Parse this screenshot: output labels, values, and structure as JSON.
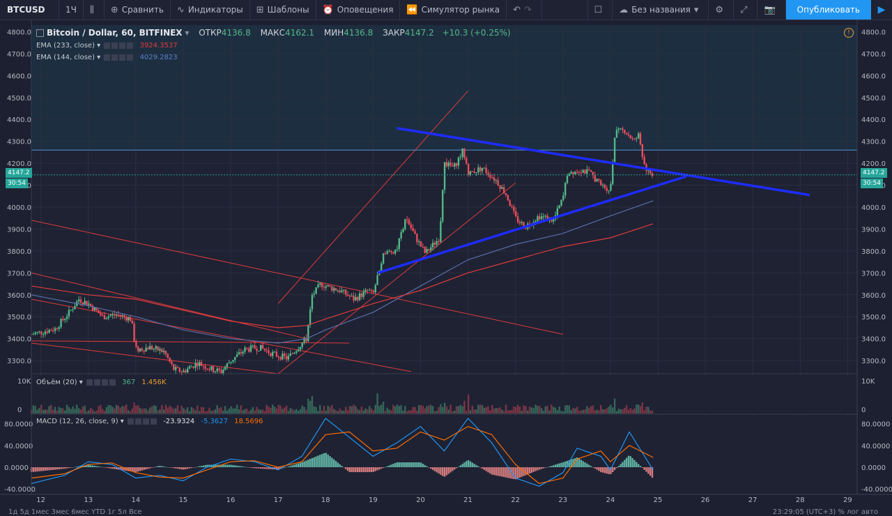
{
  "toolbar": {
    "symbol": "BTCUSD",
    "interval": "1Ч",
    "compare": "Сравнить",
    "indicators": "Индикаторы",
    "templates": "Шаблоны",
    "alerts": "Оповещения",
    "replay": "Симулятор рынка",
    "layout_name": "Без названия",
    "publish": "Опубликовать"
  },
  "legend": {
    "title": "Bitcoin / Dollar, 60, BITFINEX",
    "open_label": "ОТКР",
    "open": "4136.8",
    "high_label": "МАКС",
    "high": "4162.1",
    "low_label": "МИН",
    "low": "4136.8",
    "close_label": "ЗАКР",
    "close": "4147.2",
    "change": "+10.3 (+0.25%)",
    "ema1_label": "EMA (233, close)",
    "ema1_value": "3924.3537",
    "ema2_label": "EMA (144, close)",
    "ema2_value": "4029.2823",
    "volume_label": "Объём (20)",
    "volume_v1": "367",
    "volume_v2": "1.456K",
    "macd_label": "MACD (12, 26, close, 9)",
    "macd_v1": "-23.9324",
    "macd_v2": "-5.3627",
    "macd_v3": "18.5696"
  },
  "badges": {
    "price": "4147.2",
    "timer": "30:54"
  },
  "bottom": {
    "left": "1д  5д  1мес  3мес  6мес  YTD  1г  5л  Все",
    "right": "23:29:05 (UTC+3)    %    лог    авто"
  },
  "chart_data": {
    "type": "line",
    "colors": {
      "up": "#53b987",
      "down": "#eb4d5c",
      "ema233": "#e23b3b",
      "ema144": "#5a6ea8",
      "trend": "#1e2cff",
      "macd": "#2196f3",
      "signal": "#ff6d00",
      "resistance": "#4a7fb0"
    },
    "price_axis": {
      "ticks": [
        3300,
        3400,
        3500,
        3600,
        3700,
        3800,
        3900,
        4000,
        4100,
        4200,
        4300,
        4400,
        4500,
        4600,
        4700,
        4800
      ],
      "range": [
        3240,
        4830
      ]
    },
    "volume_axis": {
      "ticks": [
        "10K",
        "0"
      ]
    },
    "macd_axis": {
      "ticks": [
        80,
        40,
        0,
        -40
      ],
      "range": [
        -50,
        95
      ]
    },
    "x_axis": {
      "ticks": [
        "12",
        "13",
        "14",
        "15",
        "16",
        "17",
        "18",
        "19",
        "20",
        "21",
        "22",
        "23",
        "24",
        "25",
        "26",
        "27",
        "28",
        "29"
      ],
      "range": [
        11.8,
        29.2
      ]
    },
    "price_path": [
      [
        11.8,
        3420
      ],
      [
        12.0,
        3430
      ],
      [
        12.3,
        3445
      ],
      [
        12.6,
        3520
      ],
      [
        12.8,
        3580
      ],
      [
        13.0,
        3560
      ],
      [
        13.3,
        3500
      ],
      [
        13.6,
        3510
      ],
      [
        13.9,
        3490
      ],
      [
        14.0,
        3350
      ],
      [
        14.3,
        3360
      ],
      [
        14.6,
        3340
      ],
      [
        14.8,
        3260
      ],
      [
        15.0,
        3250
      ],
      [
        15.3,
        3290
      ],
      [
        15.6,
        3260
      ],
      [
        15.8,
        3250
      ],
      [
        16.0,
        3300
      ],
      [
        16.3,
        3350
      ],
      [
        16.6,
        3360
      ],
      [
        16.9,
        3330
      ],
      [
        17.2,
        3310
      ],
      [
        17.5,
        3380
      ],
      [
        17.6,
        3400
      ],
      [
        17.7,
        3590
      ],
      [
        17.9,
        3650
      ],
      [
        18.0,
        3640
      ],
      [
        18.3,
        3620
      ],
      [
        18.6,
        3580
      ],
      [
        18.9,
        3620
      ],
      [
        19.0,
        3600
      ],
      [
        19.2,
        3780
      ],
      [
        19.5,
        3810
      ],
      [
        19.7,
        3950
      ],
      [
        19.9,
        3860
      ],
      [
        20.1,
        3790
      ],
      [
        20.4,
        3860
      ],
      [
        20.5,
        4200
      ],
      [
        20.7,
        4180
      ],
      [
        20.9,
        4260
      ],
      [
        21.0,
        4150
      ],
      [
        21.3,
        4180
      ],
      [
        21.6,
        4120
      ],
      [
        21.8,
        4060
      ],
      [
        22.0,
        3950
      ],
      [
        22.2,
        3910
      ],
      [
        22.5,
        3960
      ],
      [
        22.8,
        3940
      ],
      [
        23.0,
        4040
      ],
      [
        23.1,
        4160
      ],
      [
        23.4,
        4170
      ],
      [
        23.6,
        4150
      ],
      [
        23.8,
        4100
      ],
      [
        24.0,
        4080
      ],
      [
        24.1,
        4340
      ],
      [
        24.3,
        4350
      ],
      [
        24.5,
        4300
      ],
      [
        24.6,
        4330
      ],
      [
        24.7,
        4200
      ],
      [
        24.8,
        4160
      ],
      [
        24.9,
        4147
      ]
    ],
    "ema233": [
      [
        11.8,
        3640
      ],
      [
        13.0,
        3600
      ],
      [
        14.0,
        3580
      ],
      [
        15.0,
        3530
      ],
      [
        16.0,
        3480
      ],
      [
        17.0,
        3450
      ],
      [
        17.6,
        3460
      ],
      [
        18.0,
        3490
      ],
      [
        19.0,
        3560
      ],
      [
        20.0,
        3620
      ],
      [
        21.0,
        3700
      ],
      [
        22.0,
        3760
      ],
      [
        23.0,
        3820
      ],
      [
        24.0,
        3860
      ],
      [
        24.9,
        3924
      ]
    ],
    "ema144": [
      [
        11.8,
        3600
      ],
      [
        13.0,
        3550
      ],
      [
        14.0,
        3500
      ],
      [
        15.0,
        3440
      ],
      [
        16.0,
        3400
      ],
      [
        17.0,
        3380
      ],
      [
        17.6,
        3400
      ],
      [
        18.0,
        3440
      ],
      [
        19.0,
        3520
      ],
      [
        20.0,
        3640
      ],
      [
        21.0,
        3760
      ],
      [
        22.0,
        3830
      ],
      [
        23.0,
        3880
      ],
      [
        24.0,
        3960
      ],
      [
        24.9,
        4029
      ]
    ],
    "trend_lines": [
      {
        "name": "upper",
        "from": [
          19.5,
          4360
        ],
        "to": [
          28.2,
          4055
        ]
      },
      {
        "name": "lower",
        "from": [
          19.1,
          3700
        ],
        "to": [
          25.6,
          4140
        ]
      }
    ],
    "channel_lines": [
      {
        "from": [
          11.8,
          3940
        ],
        "to": [
          23.0,
          3420
        ]
      },
      {
        "from": [
          11.8,
          3700
        ],
        "to": [
          17.6,
          3400
        ]
      },
      {
        "from": [
          11.8,
          3580
        ],
        "to": [
          19.8,
          3250
        ]
      },
      {
        "from": [
          11.8,
          3390
        ],
        "to": [
          18.5,
          3380
        ]
      },
      {
        "from": [
          11.8,
          3380
        ],
        "to": [
          17.0,
          3240
        ]
      },
      {
        "from": [
          17.0,
          3560
        ],
        "to": [
          21.0,
          4530
        ]
      },
      {
        "from": [
          17.0,
          3240
        ],
        "to": [
          22.0,
          4110
        ]
      }
    ],
    "resistance": 4260,
    "last_price": 4147.2,
    "macd_line": [
      [
        11.8,
        -30
      ],
      [
        12.5,
        -15
      ],
      [
        13.0,
        10
      ],
      [
        13.5,
        5
      ],
      [
        14.0,
        -20
      ],
      [
        14.5,
        -15
      ],
      [
        15.0,
        -25
      ],
      [
        15.5,
        0
      ],
      [
        16.0,
        15
      ],
      [
        16.5,
        10
      ],
      [
        17.0,
        -5
      ],
      [
        17.5,
        20
      ],
      [
        18.0,
        90
      ],
      [
        18.5,
        55
      ],
      [
        19.0,
        20
      ],
      [
        19.5,
        45
      ],
      [
        20.0,
        75
      ],
      [
        20.5,
        30
      ],
      [
        21.0,
        90
      ],
      [
        21.5,
        45
      ],
      [
        22.0,
        -20
      ],
      [
        22.5,
        -35
      ],
      [
        23.0,
        -10
      ],
      [
        23.3,
        35
      ],
      [
        23.8,
        20
      ],
      [
        24.0,
        -5
      ],
      [
        24.4,
        65
      ],
      [
        24.9,
        -5
      ]
    ],
    "signal_line": [
      [
        11.8,
        -20
      ],
      [
        12.5,
        -12
      ],
      [
        13.0,
        5
      ],
      [
        13.5,
        8
      ],
      [
        14.0,
        -10
      ],
      [
        14.5,
        -18
      ],
      [
        15.0,
        -20
      ],
      [
        15.5,
        -5
      ],
      [
        16.0,
        10
      ],
      [
        16.5,
        12
      ],
      [
        17.0,
        0
      ],
      [
        17.5,
        10
      ],
      [
        18.0,
        60
      ],
      [
        18.5,
        65
      ],
      [
        19.0,
        30
      ],
      [
        19.5,
        35
      ],
      [
        20.0,
        65
      ],
      [
        20.5,
        50
      ],
      [
        21.0,
        75
      ],
      [
        21.5,
        60
      ],
      [
        22.0,
        5
      ],
      [
        22.5,
        -30
      ],
      [
        23.0,
        -20
      ],
      [
        23.3,
        15
      ],
      [
        23.8,
        30
      ],
      [
        24.0,
        10
      ],
      [
        24.4,
        40
      ],
      [
        24.9,
        18
      ]
    ]
  }
}
